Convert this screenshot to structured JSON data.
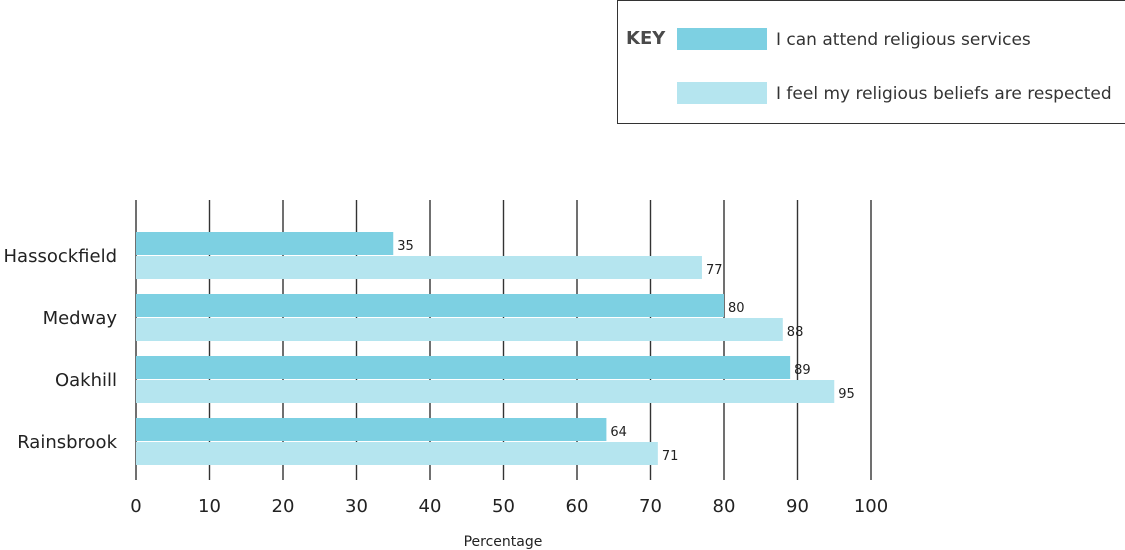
{
  "legend": {
    "key_label": "KEY",
    "items": [
      {
        "label": "I can attend religious services",
        "color": "#7dd0e2"
      },
      {
        "label": "I feel my religious beliefs are respected",
        "color": "#b5e5ef"
      }
    ]
  },
  "chart_data": {
    "type": "bar",
    "orientation": "horizontal",
    "categories": [
      "Hassockfield",
      "Medway",
      "Oakhill",
      "Rainsbrook"
    ],
    "series": [
      {
        "name": "I can attend religious services",
        "values": [
          35,
          80,
          89,
          64
        ],
        "color": "#7dd0e2"
      },
      {
        "name": "I feel my religious beliefs are respected",
        "values": [
          77,
          88,
          95,
          71
        ],
        "color": "#b5e5ef"
      }
    ],
    "xlabel": "Percentage",
    "ylabel": "",
    "xlim": [
      0,
      100
    ],
    "xticks": [
      0,
      10,
      20,
      30,
      40,
      50,
      60,
      70,
      80,
      90,
      100
    ],
    "grid": "vertical",
    "legend_position": "top-right"
  }
}
